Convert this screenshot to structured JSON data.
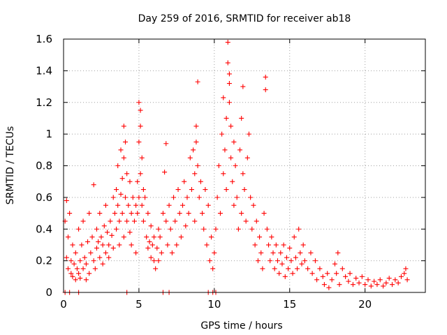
{
  "chart_data": {
    "type": "scatter",
    "title": "Day 259 of 2016, SRMTID for receiver ab18",
    "xlabel": "GPS time / hours",
    "ylabel": "SRMTID / TECUs",
    "xlim": [
      0,
      24
    ],
    "ylim": [
      0,
      1.6
    ],
    "x_ticks": [
      0,
      5,
      10,
      15,
      20
    ],
    "y_ticks": [
      0,
      0.2,
      0.4,
      0.6,
      0.8,
      1,
      1.2,
      1.4,
      1.6
    ],
    "x_tick_labels": [
      "0",
      "5",
      "10",
      "15",
      "20"
    ],
    "y_tick_labels": [
      "0",
      "0.2",
      "0.4",
      "0.6",
      "0.8",
      "1",
      "1.2",
      "1.4",
      "1.6"
    ],
    "grid": true,
    "marker": "plus",
    "color": "#ff0000",
    "series": [
      {
        "name": "SRMTID",
        "points": [
          [
            0.1,
            0.0
          ],
          [
            0.4,
            0.0
          ],
          [
            1.0,
            0.0
          ],
          [
            4.2,
            0.0
          ],
          [
            6.6,
            0.0
          ],
          [
            7.0,
            0.0
          ],
          [
            9.6,
            0.0
          ],
          [
            9.9,
            0.0
          ],
          [
            10.1,
            0.0
          ],
          [
            0.1,
            0.45
          ],
          [
            0.2,
            0.58
          ],
          [
            0.2,
            0.22
          ],
          [
            0.3,
            0.35
          ],
          [
            0.3,
            0.15
          ],
          [
            0.4,
            0.5
          ],
          [
            0.5,
            0.2
          ],
          [
            0.5,
            0.12
          ],
          [
            0.6,
            0.3
          ],
          [
            0.6,
            0.1
          ],
          [
            0.7,
            0.18
          ],
          [
            0.8,
            0.08
          ],
          [
            0.8,
            0.25
          ],
          [
            0.9,
            0.15
          ],
          [
            1.0,
            0.12
          ],
          [
            1.0,
            0.4
          ],
          [
            1.1,
            0.2
          ],
          [
            1.1,
            0.09
          ],
          [
            1.2,
            0.3
          ],
          [
            1.3,
            0.15
          ],
          [
            1.3,
            0.45
          ],
          [
            1.4,
            0.22
          ],
          [
            1.5,
            0.18
          ],
          [
            1.5,
            0.08
          ],
          [
            1.6,
            0.32
          ],
          [
            1.7,
            0.12
          ],
          [
            1.7,
            0.5
          ],
          [
            1.8,
            0.25
          ],
          [
            1.9,
            0.35
          ],
          [
            2.0,
            0.2
          ],
          [
            2.0,
            0.68
          ],
          [
            2.1,
            0.15
          ],
          [
            2.2,
            0.4
          ],
          [
            2.2,
            0.28
          ],
          [
            2.3,
            0.32
          ],
          [
            2.4,
            0.22
          ],
          [
            2.4,
            0.5
          ],
          [
            2.5,
            0.35
          ],
          [
            2.6,
            0.3
          ],
          [
            2.6,
            0.18
          ],
          [
            2.7,
            0.42
          ],
          [
            2.8,
            0.25
          ],
          [
            2.8,
            0.55
          ],
          [
            2.9,
            0.38
          ],
          [
            3.0,
            0.3
          ],
          [
            3.0,
            0.22
          ],
          [
            3.1,
            0.45
          ],
          [
            3.2,
            0.36
          ],
          [
            3.3,
            0.6
          ],
          [
            3.3,
            0.28
          ],
          [
            3.4,
            0.5
          ],
          [
            3.5,
            0.65
          ],
          [
            3.5,
            0.4
          ],
          [
            3.6,
            0.8
          ],
          [
            3.6,
            0.55
          ],
          [
            3.7,
            0.45
          ],
          [
            3.7,
            0.3
          ],
          [
            3.8,
            0.9
          ],
          [
            3.8,
            0.62
          ],
          [
            3.9,
            0.72
          ],
          [
            3.9,
            0.5
          ],
          [
            4.0,
            1.05
          ],
          [
            4.0,
            0.85
          ],
          [
            4.0,
            0.35
          ],
          [
            4.1,
            0.95
          ],
          [
            4.1,
            0.6
          ],
          [
            4.2,
            0.75
          ],
          [
            4.2,
            0.45
          ],
          [
            4.3,
            0.55
          ],
          [
            4.4,
            0.38
          ],
          [
            4.4,
            0.7
          ],
          [
            4.5,
            0.5
          ],
          [
            4.5,
            0.3
          ],
          [
            4.6,
            0.6
          ],
          [
            4.7,
            0.45
          ],
          [
            4.8,
            0.55
          ],
          [
            4.8,
            0.25
          ],
          [
            4.9,
            0.7
          ],
          [
            4.9,
            0.5
          ],
          [
            5.0,
            1.2
          ],
          [
            5.0,
            0.95
          ],
          [
            5.0,
            0.6
          ],
          [
            5.1,
            1.15
          ],
          [
            5.1,
            1.05
          ],
          [
            5.1,
            0.75
          ],
          [
            5.2,
            0.85
          ],
          [
            5.2,
            0.55
          ],
          [
            5.3,
            0.65
          ],
          [
            5.3,
            0.45
          ],
          [
            5.4,
            0.6
          ],
          [
            5.5,
            0.35
          ],
          [
            5.6,
            0.5
          ],
          [
            5.6,
            0.28
          ],
          [
            5.7,
            0.32
          ],
          [
            5.8,
            0.22
          ],
          [
            5.8,
            0.42
          ],
          [
            5.9,
            0.3
          ],
          [
            6.0,
            0.2
          ],
          [
            6.0,
            0.35
          ],
          [
            6.1,
            0.15
          ],
          [
            6.2,
            0.28
          ],
          [
            6.3,
            0.4
          ],
          [
            6.3,
            0.2
          ],
          [
            6.4,
            0.35
          ],
          [
            6.5,
            0.25
          ],
          [
            6.6,
            0.5
          ],
          [
            6.7,
            0.76
          ],
          [
            6.8,
            0.94
          ],
          [
            6.8,
            0.45
          ],
          [
            6.9,
            0.3
          ],
          [
            7.0,
            0.55
          ],
          [
            7.1,
            0.4
          ],
          [
            7.2,
            0.25
          ],
          [
            7.3,
            0.6
          ],
          [
            7.4,
            0.45
          ],
          [
            7.5,
            0.3
          ],
          [
            7.6,
            0.65
          ],
          [
            7.7,
            0.5
          ],
          [
            7.8,
            0.35
          ],
          [
            7.9,
            0.55
          ],
          [
            8.0,
            0.7
          ],
          [
            8.1,
            0.42
          ],
          [
            8.2,
            0.6
          ],
          [
            8.3,
            0.5
          ],
          [
            8.4,
            0.85
          ],
          [
            8.5,
            0.65
          ],
          [
            8.6,
            0.9
          ],
          [
            8.7,
            0.75
          ],
          [
            8.7,
            0.45
          ],
          [
            8.8,
            1.05
          ],
          [
            8.8,
            0.95
          ],
          [
            8.9,
            1.33
          ],
          [
            8.9,
            0.8
          ],
          [
            9.0,
            0.6
          ],
          [
            9.1,
            0.7
          ],
          [
            9.2,
            0.5
          ],
          [
            9.3,
            0.4
          ],
          [
            9.4,
            0.65
          ],
          [
            9.5,
            0.3
          ],
          [
            9.6,
            0.55
          ],
          [
            9.7,
            0.2
          ],
          [
            9.8,
            0.35
          ],
          [
            9.9,
            0.15
          ],
          [
            10.0,
            0.25
          ],
          [
            10.1,
            0.4
          ],
          [
            10.2,
            0.6
          ],
          [
            10.3,
            0.8
          ],
          [
            10.4,
            0.5
          ],
          [
            10.5,
            1.0
          ],
          [
            10.6,
            0.75
          ],
          [
            10.6,
            1.23
          ],
          [
            10.7,
            0.9
          ],
          [
            10.8,
            1.1
          ],
          [
            10.8,
            0.65
          ],
          [
            10.9,
            1.58
          ],
          [
            10.9,
            1.45
          ],
          [
            11.0,
            1.38
          ],
          [
            11.0,
            1.32
          ],
          [
            11.0,
            1.2
          ],
          [
            11.1,
            1.05
          ],
          [
            11.1,
            0.85
          ],
          [
            11.2,
            0.7
          ],
          [
            11.3,
            0.95
          ],
          [
            11.3,
            0.55
          ],
          [
            11.4,
            0.8
          ],
          [
            11.5,
            0.6
          ],
          [
            11.6,
            0.4
          ],
          [
            11.7,
            0.9
          ],
          [
            11.8,
            1.1
          ],
          [
            11.8,
            0.5
          ],
          [
            11.9,
            1.3
          ],
          [
            11.9,
            0.75
          ],
          [
            12.0,
            0.65
          ],
          [
            12.1,
            0.45
          ],
          [
            12.2,
            0.85
          ],
          [
            12.3,
            1.0
          ],
          [
            12.4,
            0.6
          ],
          [
            12.5,
            0.4
          ],
          [
            12.6,
            0.55
          ],
          [
            12.7,
            0.3
          ],
          [
            12.8,
            0.45
          ],
          [
            12.9,
            0.2
          ],
          [
            13.0,
            0.35
          ],
          [
            13.1,
            0.25
          ],
          [
            13.2,
            0.15
          ],
          [
            13.3,
            0.5
          ],
          [
            13.4,
            1.36
          ],
          [
            13.4,
            1.28
          ],
          [
            13.5,
            0.4
          ],
          [
            13.6,
            0.3
          ],
          [
            13.7,
            0.2
          ],
          [
            13.8,
            0.35
          ],
          [
            13.9,
            0.25
          ],
          [
            14.0,
            0.15
          ],
          [
            14.1,
            0.3
          ],
          [
            14.2,
            0.2
          ],
          [
            14.3,
            0.12
          ],
          [
            14.4,
            0.25
          ],
          [
            14.5,
            0.18
          ],
          [
            14.6,
            0.3
          ],
          [
            14.7,
            0.1
          ],
          [
            14.8,
            0.22
          ],
          [
            14.9,
            0.15
          ],
          [
            15.0,
            0.28
          ],
          [
            15.1,
            0.2
          ],
          [
            15.2,
            0.12
          ],
          [
            15.3,
            0.35
          ],
          [
            15.4,
            0.22
          ],
          [
            15.5,
            0.15
          ],
          [
            15.6,
            0.4
          ],
          [
            15.7,
            0.25
          ],
          [
            15.8,
            0.18
          ],
          [
            15.9,
            0.3
          ],
          [
            16.0,
            0.2
          ],
          [
            16.2,
            0.15
          ],
          [
            16.4,
            0.25
          ],
          [
            16.5,
            0.12
          ],
          [
            16.7,
            0.2
          ],
          [
            16.8,
            0.08
          ],
          [
            17.0,
            0.15
          ],
          [
            17.2,
            0.1
          ],
          [
            17.3,
            0.05
          ],
          [
            17.5,
            0.12
          ],
          [
            17.6,
            0.03
          ],
          [
            17.8,
            0.08
          ],
          [
            18.0,
            0.18
          ],
          [
            18.1,
            0.12
          ],
          [
            18.2,
            0.25
          ],
          [
            18.3,
            0.05
          ],
          [
            18.5,
            0.15
          ],
          [
            18.7,
            0.1
          ],
          [
            18.9,
            0.07
          ],
          [
            19.0,
            0.12
          ],
          [
            19.2,
            0.05
          ],
          [
            19.4,
            0.09
          ],
          [
            19.6,
            0.06
          ],
          [
            19.8,
            0.1
          ],
          [
            20.0,
            0.05
          ],
          [
            20.2,
            0.08
          ],
          [
            20.4,
            0.04
          ],
          [
            20.6,
            0.07
          ],
          [
            20.8,
            0.05
          ],
          [
            21.0,
            0.08
          ],
          [
            21.2,
            0.04
          ],
          [
            21.4,
            0.06
          ],
          [
            21.6,
            0.09
          ],
          [
            21.8,
            0.05
          ],
          [
            22.0,
            0.08
          ],
          [
            22.2,
            0.06
          ],
          [
            22.4,
            0.1
          ],
          [
            22.6,
            0.12
          ],
          [
            22.7,
            0.15
          ],
          [
            22.8,
            0.08
          ]
        ]
      }
    ]
  }
}
